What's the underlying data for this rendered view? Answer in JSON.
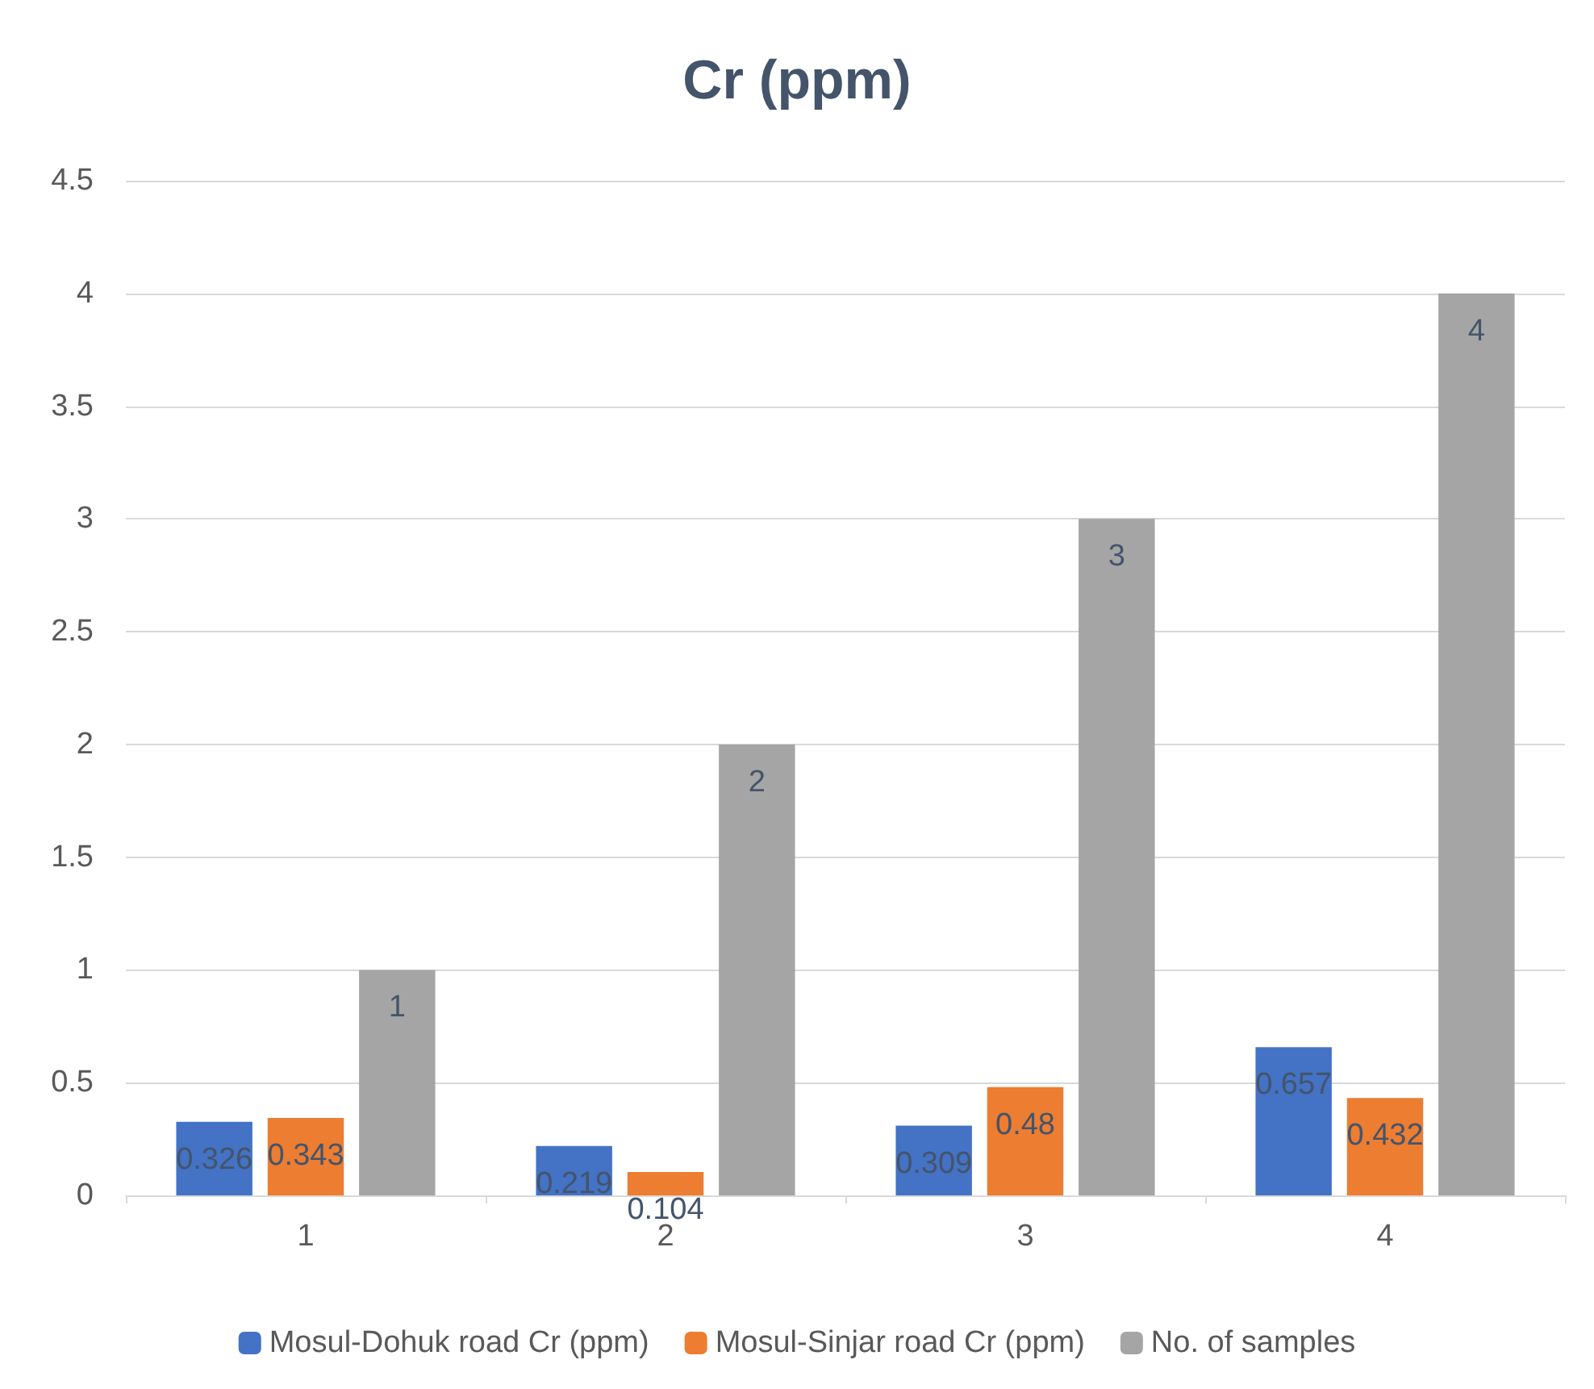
{
  "chart_data": {
    "type": "bar",
    "title": "Cr (ppm)",
    "categories": [
      "1",
      "2",
      "3",
      "4"
    ],
    "series": [
      {
        "name": "Mosul-Dohuk road Cr (ppm)",
        "color": "#4472c4",
        "values": [
          0.326,
          0.219,
          0.309,
          0.657
        ]
      },
      {
        "name": "Mosul-Sinjar road Cr (ppm)",
        "color": "#ed7d31",
        "values": [
          0.343,
          0.104,
          0.48,
          0.432
        ]
      },
      {
        "name": "No. of samples",
        "color": "#a5a5a5",
        "values": [
          1,
          2,
          3,
          4
        ]
      }
    ],
    "ylim": [
      0,
      4.5
    ],
    "yticks": [
      0,
      0.5,
      1,
      1.5,
      2,
      2.5,
      3,
      3.5,
      4,
      4.5
    ],
    "grid": "y",
    "legend": "bottom",
    "data_labels": true
  }
}
